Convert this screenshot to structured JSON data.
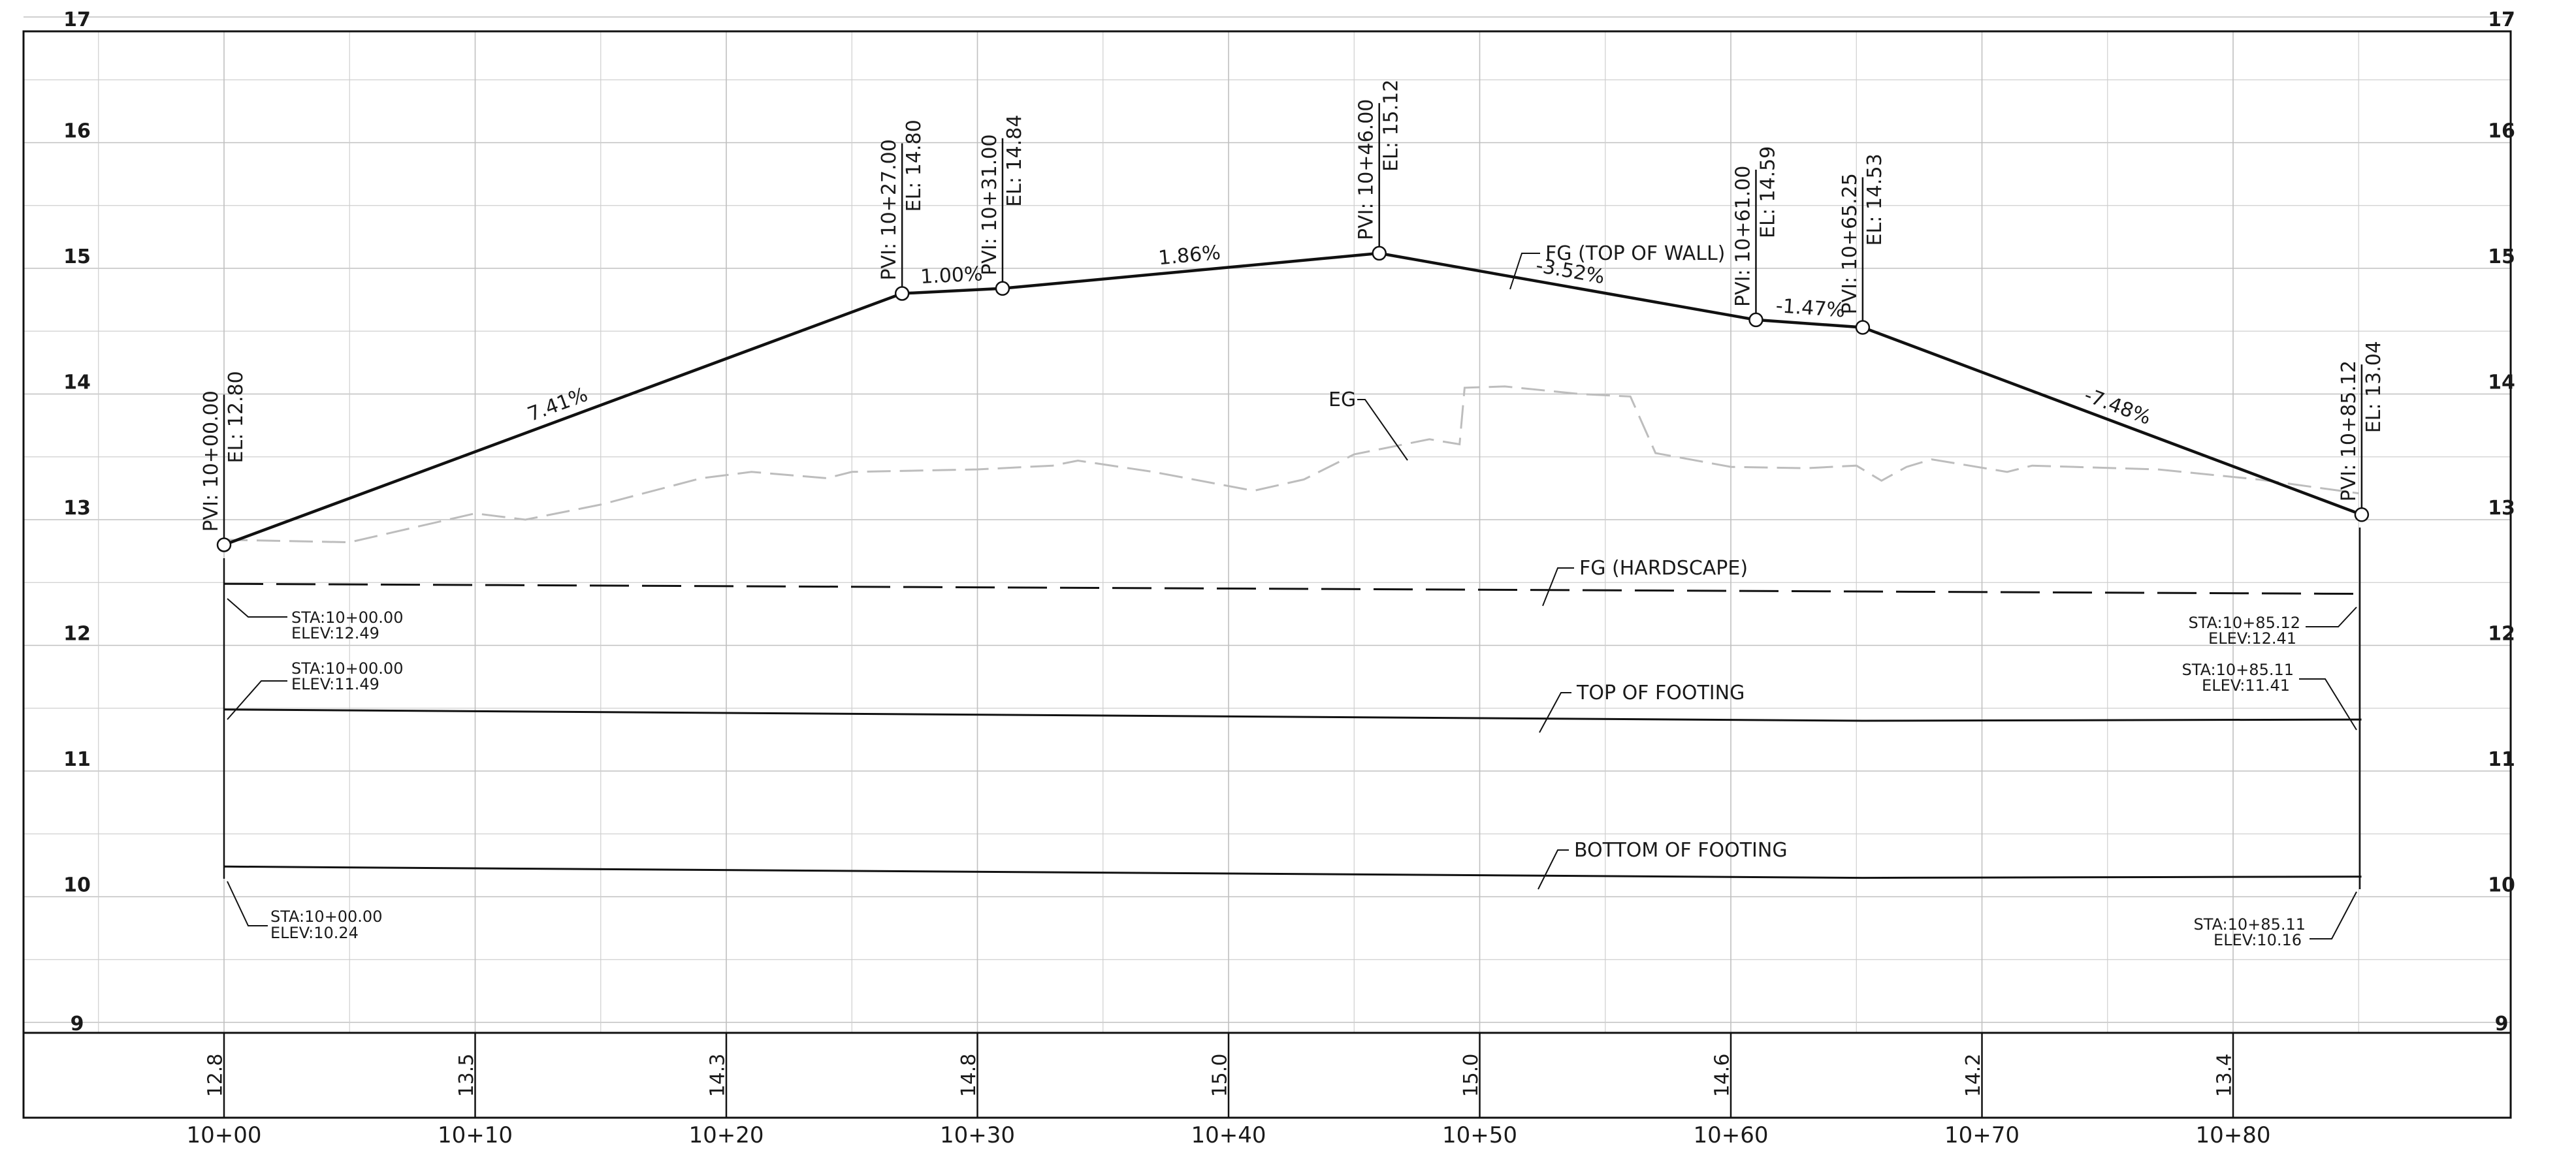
{
  "elevation_labels": [
    "9",
    "10",
    "11",
    "12",
    "13",
    "14",
    "15",
    "16",
    "17"
  ],
  "station_labels": [
    "10+00",
    "10+10",
    "10+20",
    "10+30",
    "10+40",
    "10+50",
    "10+60",
    "10+70",
    "10+80"
  ],
  "ground_band_values": [
    "12.8",
    "13.5",
    "14.3",
    "14.8",
    "15.0",
    "15.0",
    "14.6",
    "14.2",
    "13.4"
  ],
  "pvis": [
    {
      "pvi": "PVI: 10+00.00",
      "el": "EL: 12.80"
    },
    {
      "pvi": "PVI: 10+27.00",
      "el": "EL: 14.80"
    },
    {
      "pvi": "PVI: 10+31.00",
      "el": "EL: 14.84"
    },
    {
      "pvi": "PVI: 10+46.00",
      "el": "EL: 15.12"
    },
    {
      "pvi": "PVI: 10+61.00",
      "el": "EL: 14.59"
    },
    {
      "pvi": "PVI: 10+65.25",
      "el": "EL: 14.53"
    },
    {
      "pvi": "PVI: 10+85.12",
      "el": "EL: 13.04"
    }
  ],
  "grades": [
    "7.41%",
    "1.00%",
    "1.86%",
    "-3.52%",
    "-1.47%",
    "-7.48%"
  ],
  "line_labels": {
    "fg_wall": "FG (TOP OF WALL)",
    "eg": "EG",
    "fg_hardscape": "FG (HARDSCAPE)",
    "top_footing": "TOP OF FOOTING",
    "bottom_footing": "BOTTOM OF FOOTING"
  },
  "callouts": [
    {
      "sta": "STA:10+00.00",
      "elev": "ELEV:12.49"
    },
    {
      "sta": "STA:10+00.00",
      "elev": "ELEV:11.49"
    },
    {
      "sta": "STA:10+00.00",
      "elev": "ELEV:10.24"
    },
    {
      "sta": "STA:10+85.12",
      "elev": "ELEV:12.41"
    },
    {
      "sta": "STA:10+85.11",
      "elev": "ELEV:11.41"
    },
    {
      "sta": "STA:10+85.11",
      "elev": "ELEV:10.16"
    }
  ],
  "profile_data": {
    "fg_wall": [
      [
        0,
        12.8
      ],
      [
        27.0,
        14.8
      ],
      [
        31.0,
        14.84
      ],
      [
        46.0,
        15.12
      ],
      [
        61.0,
        14.59
      ],
      [
        65.25,
        14.53
      ],
      [
        85.12,
        13.04
      ]
    ],
    "fg_hardscape": [
      [
        0,
        12.49
      ],
      [
        85.12,
        12.41
      ]
    ],
    "top_of_footing": [
      [
        0,
        11.49
      ],
      [
        65.25,
        11.4
      ],
      [
        85.11,
        11.41
      ]
    ],
    "bottom_of_footing": [
      [
        0,
        10.24
      ],
      [
        65.25,
        10.15
      ],
      [
        85.11,
        10.16
      ]
    ],
    "eg": [
      [
        0,
        12.84
      ],
      [
        5,
        12.82
      ],
      [
        10,
        13.05
      ],
      [
        12,
        13.0
      ],
      [
        15,
        13.12
      ],
      [
        19,
        13.33
      ],
      [
        21,
        13.38
      ],
      [
        24,
        13.33
      ],
      [
        25,
        13.38
      ],
      [
        30,
        13.4
      ],
      [
        33,
        13.43
      ],
      [
        34,
        13.47
      ],
      [
        37,
        13.38
      ],
      [
        41,
        13.23
      ],
      [
        43,
        13.32
      ],
      [
        45,
        13.52
      ],
      [
        48,
        13.64
      ],
      [
        49.2,
        13.6
      ],
      [
        49.4,
        14.05
      ],
      [
        51,
        14.06
      ],
      [
        54,
        14.0
      ],
      [
        56,
        13.98
      ],
      [
        57,
        13.53
      ],
      [
        60,
        13.42
      ],
      [
        63,
        13.41
      ],
      [
        65,
        13.43
      ],
      [
        66,
        13.31
      ],
      [
        67,
        13.42
      ],
      [
        68,
        13.48
      ],
      [
        71,
        13.38
      ],
      [
        72,
        13.43
      ],
      [
        77,
        13.4
      ],
      [
        81,
        13.32
      ],
      [
        85,
        13.21
      ]
    ]
  }
}
